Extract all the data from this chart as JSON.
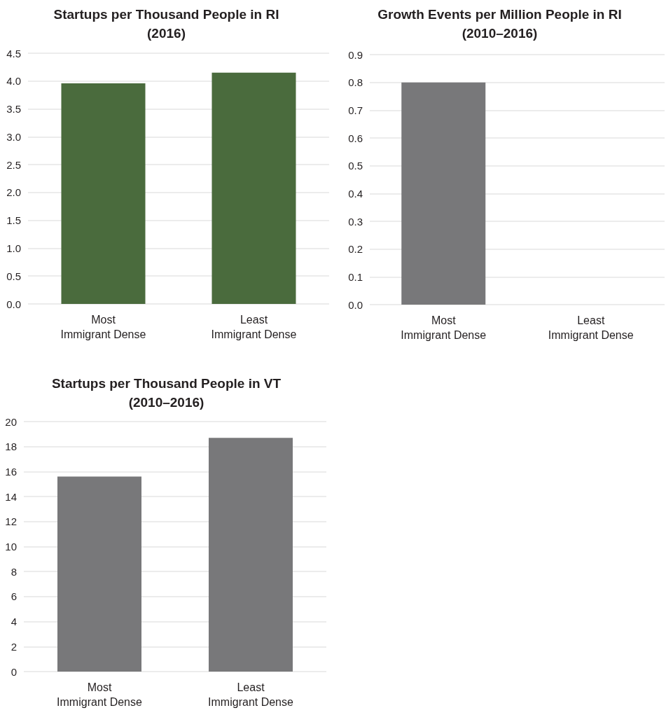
{
  "chart_data": [
    {
      "type": "bar",
      "title": "Startups per Thousand People in RI\n(2016)",
      "categories": [
        "Most\nImmigrant Dense",
        "Least\nImmigrant Dense"
      ],
      "values": [
        3.96,
        4.15
      ],
      "color": "#4a6b3d",
      "ylim": [
        0,
        4.5
      ],
      "yticks": [
        {
          "value": 0,
          "label": "0.0"
        },
        0.5,
        {
          "value": 1,
          "label": "1.0"
        },
        1.5,
        {
          "value": 2,
          "label": "2.0"
        },
        2.5,
        {
          "value": 3,
          "label": "3.0"
        },
        3.5,
        {
          "value": 4,
          "label": "4.0"
        },
        4.5
      ],
      "grid": "y"
    },
    {
      "type": "bar",
      "title": "Growth Events per Million People in RI\n(2010–2016)",
      "categories": [
        "Most\nImmigrant Dense",
        "Least\nImmigrant Dense"
      ],
      "values": [
        0.8,
        0
      ],
      "color": "#78787a",
      "ylim": [
        0,
        0.9
      ],
      "yticks": [
        {
          "value": 0,
          "label": "0.0"
        },
        0.1,
        0.2,
        0.3,
        0.4,
        0.5,
        0.6,
        0.7,
        0.8,
        0.9
      ],
      "grid": "y"
    },
    {
      "type": "bar",
      "title": "Startups per Thousand People in VT\n(2010–2016)",
      "categories": [
        "Most\nImmigrant Dense",
        "Least\nImmigrant Dense"
      ],
      "values": [
        15.6,
        18.7
      ],
      "color": "#78787a",
      "ylim": [
        0,
        20
      ],
      "yticks": [
        0,
        2,
        4,
        6,
        8,
        10,
        12,
        14,
        16,
        18,
        20
      ],
      "grid": "y"
    }
  ]
}
